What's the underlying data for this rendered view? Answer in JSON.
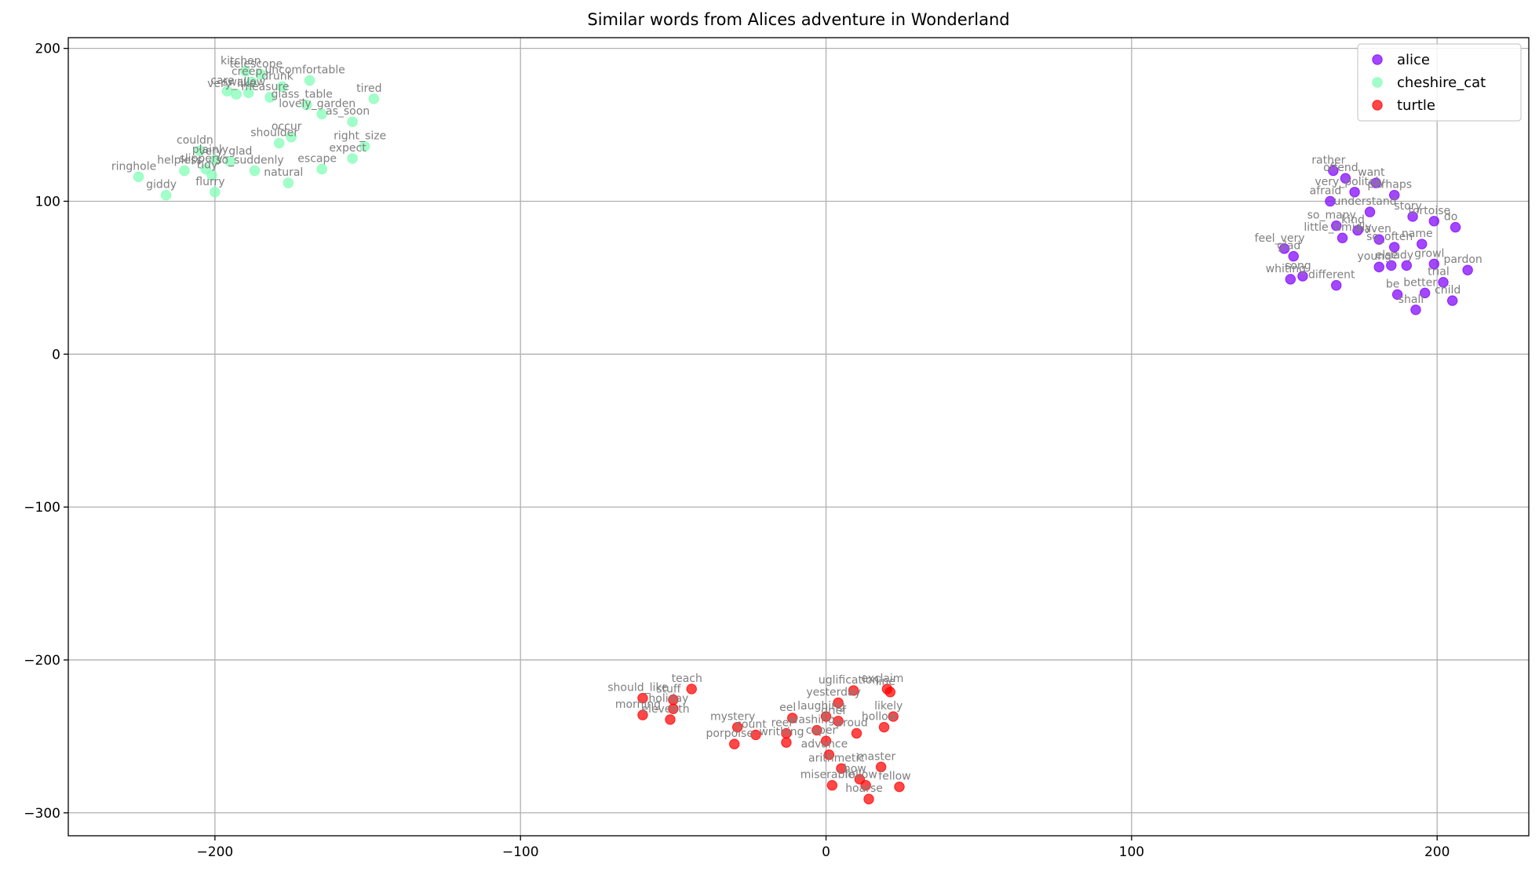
{
  "chart_data": {
    "type": "scatter",
    "title": "Similar words from Alices adventure in Wonderland",
    "xlabel": "",
    "ylabel": "",
    "xlim": [
      -248,
      230
    ],
    "ylim": [
      -315,
      207
    ],
    "xticks": [
      -200,
      -100,
      0,
      100,
      200
    ],
    "yticks": [
      -300,
      -200,
      -100,
      0,
      100,
      200
    ],
    "grid": true,
    "legend_position": "top-right",
    "series": [
      {
        "name": "alice",
        "color": "#8000ff",
        "points": [
          {
            "label": "rather",
            "x": 166,
            "y": 120
          },
          {
            "label": "offend",
            "x": 170,
            "y": 115
          },
          {
            "label": "want",
            "x": 180,
            "y": 112
          },
          {
            "label": "very_politely",
            "x": 173,
            "y": 106
          },
          {
            "label": "perhaps",
            "x": 186,
            "y": 104
          },
          {
            "label": "afraid",
            "x": 165,
            "y": 100
          },
          {
            "label": "understand",
            "x": 178,
            "y": 93
          },
          {
            "label": "story",
            "x": 192,
            "y": 90
          },
          {
            "label": "tortoise",
            "x": 199,
            "y": 87
          },
          {
            "label": "do",
            "x": 206,
            "y": 83
          },
          {
            "label": "so_many",
            "x": 167,
            "y": 84
          },
          {
            "label": "kind",
            "x": 174,
            "y": 81
          },
          {
            "label": "little_timidly",
            "x": 169,
            "y": 76
          },
          {
            "label": "haven",
            "x": 181,
            "y": 75
          },
          {
            "label": "so_often",
            "x": 186,
            "y": 70
          },
          {
            "label": "name",
            "x": 195,
            "y": 72
          },
          {
            "label": "feel_very",
            "x": 150,
            "y": 69
          },
          {
            "label": "glad",
            "x": 153,
            "y": 64
          },
          {
            "label": "young",
            "x": 181,
            "y": 57
          },
          {
            "label": "lady",
            "x": 190,
            "y": 58
          },
          {
            "label": "else",
            "x": 185,
            "y": 58
          },
          {
            "label": "growl",
            "x": 199,
            "y": 59
          },
          {
            "label": "pardon",
            "x": 210,
            "y": 55
          },
          {
            "label": "whiting",
            "x": 152,
            "y": 49
          },
          {
            "label": "song",
            "x": 156,
            "y": 51
          },
          {
            "label": "different",
            "x": 167,
            "y": 45
          },
          {
            "label": "trial",
            "x": 202,
            "y": 47
          },
          {
            "label": "better",
            "x": 196,
            "y": 40
          },
          {
            "label": "be",
            "x": 187,
            "y": 39
          },
          {
            "label": "child",
            "x": 205,
            "y": 35
          },
          {
            "label": "shall",
            "x": 193,
            "y": 29
          }
        ]
      },
      {
        "name": "cheshire_cat",
        "color": "#80ffb4",
        "points": [
          {
            "label": "kitchen",
            "x": -190,
            "y": 185
          },
          {
            "label": "telescope",
            "x": -185,
            "y": 183
          },
          {
            "label": "creep",
            "x": -188,
            "y": 178
          },
          {
            "label": "uncomfortable",
            "x": -169,
            "y": 179
          },
          {
            "label": "drunk",
            "x": -178,
            "y": 175
          },
          {
            "label": "care",
            "x": -196,
            "y": 172
          },
          {
            "label": "very_like",
            "x": -193,
            "y": 170
          },
          {
            "label": "swallow",
            "x": -189,
            "y": 171
          },
          {
            "label": "measure",
            "x": -182,
            "y": 168
          },
          {
            "label": "glass_table",
            "x": -170,
            "y": 163
          },
          {
            "label": "lovely_garden",
            "x": -165,
            "y": 157
          },
          {
            "label": "as_soon",
            "x": -155,
            "y": 152
          },
          {
            "label": "tired",
            "x": -148,
            "y": 167
          },
          {
            "label": "shoulder",
            "x": -179,
            "y": 138
          },
          {
            "label": "occur",
            "x": -175,
            "y": 142
          },
          {
            "label": "right_size",
            "x": -151,
            "y": 136
          },
          {
            "label": "expect",
            "x": -155,
            "y": 128
          },
          {
            "label": "couldn",
            "x": -205,
            "y": 133
          },
          {
            "label": "plainly",
            "x": -200,
            "y": 127
          },
          {
            "label": "very_glad",
            "x": -195,
            "y": 126
          },
          {
            "label": "helpless",
            "x": -210,
            "y": 120
          },
          {
            "label": "slippery",
            "x": -203,
            "y": 121
          },
          {
            "label": "tidy",
            "x": -201,
            "y": 117
          },
          {
            "label": "so_suddenly",
            "x": -187,
            "y": 120
          },
          {
            "label": "escape",
            "x": -165,
            "y": 121
          },
          {
            "label": "natural",
            "x": -176,
            "y": 112
          },
          {
            "label": "ringhole",
            "x": -225,
            "y": 116
          },
          {
            "label": "giddy",
            "x": -216,
            "y": 104
          },
          {
            "label": "flurry",
            "x": -200,
            "y": 106
          }
        ]
      },
      {
        "name": "turtle",
        "color": "#ff0000",
        "points": [
          {
            "label": "teach",
            "x": -44,
            "y": -219
          },
          {
            "label": "should_like",
            "x": -60,
            "y": -225
          },
          {
            "label": "stuff",
            "x": -50,
            "y": -226
          },
          {
            "label": "holiday",
            "x": -50,
            "y": -232
          },
          {
            "label": "morning",
            "x": -60,
            "y": -236
          },
          {
            "label": "eleventh",
            "x": -51,
            "y": -239
          },
          {
            "label": "mystery",
            "x": -29,
            "y": -244
          },
          {
            "label": "count",
            "x": -23,
            "y": -249
          },
          {
            "label": "porpoise",
            "x": -30,
            "y": -255
          },
          {
            "label": "reel",
            "x": -13,
            "y": -248
          },
          {
            "label": "writhing",
            "x": -13,
            "y": -254
          },
          {
            "label": "washing",
            "x": -3,
            "y": -246
          },
          {
            "label": "eel",
            "x": -11,
            "y": -238
          },
          {
            "label": "laughing",
            "x": 0,
            "y": -237
          },
          {
            "label": "grief",
            "x": 4,
            "y": -240
          },
          {
            "label": "proud",
            "x": 10,
            "y": -248
          },
          {
            "label": "uglification",
            "x": 9,
            "y": -220
          },
          {
            "label": "yesterday",
            "x": 4,
            "y": -228
          },
          {
            "label": "exclaim",
            "x": 20,
            "y": -219
          },
          {
            "label": "line",
            "x": 21,
            "y": -221
          },
          {
            "label": "likely",
            "x": 22,
            "y": -237
          },
          {
            "label": "hollow",
            "x": 19,
            "y": -244
          },
          {
            "label": "caper",
            "x": 0,
            "y": -253
          },
          {
            "label": "advance",
            "x": 1,
            "y": -262
          },
          {
            "label": "master",
            "x": 18,
            "y": -270
          },
          {
            "label": "arithmetic",
            "x": 5,
            "y": -271
          },
          {
            "label": "miserable",
            "x": 2,
            "y": -282
          },
          {
            "label": "fellow",
            "x": 24,
            "y": -283
          },
          {
            "label": "how",
            "x": 11,
            "y": -278
          },
          {
            "label": "follow",
            "x": 13,
            "y": -282
          },
          {
            "label": "hoarse",
            "x": 14,
            "y": -291
          }
        ]
      }
    ]
  }
}
